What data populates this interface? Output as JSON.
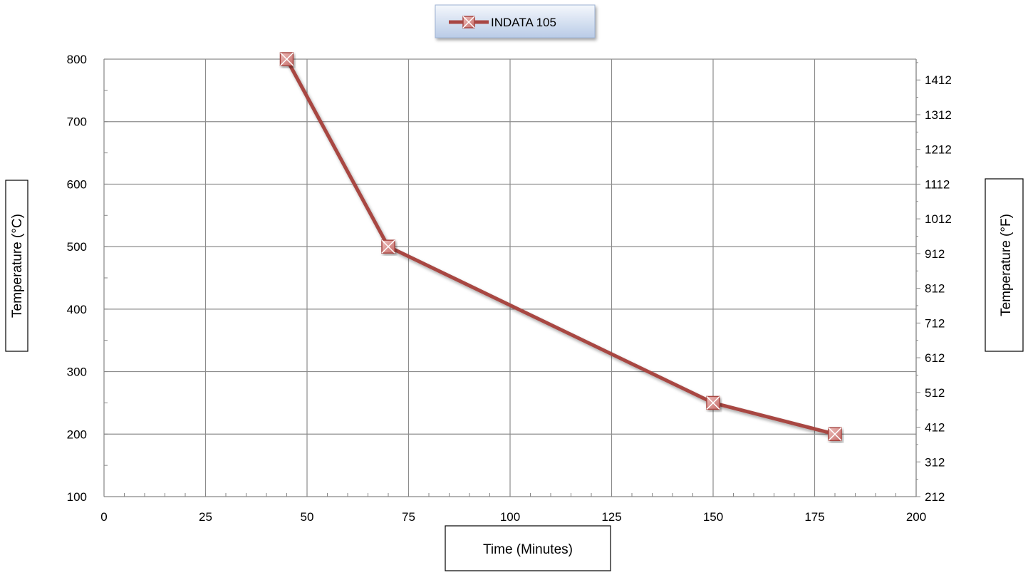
{
  "chart_data": {
    "type": "line",
    "title": "",
    "legend": {
      "placement": "top-center",
      "entries": [
        "INDATA 105"
      ]
    },
    "xlabel": "Time (Minutes)",
    "ylabel": "Temperature (°C)",
    "y2label": "Temperature (°F)",
    "xlim": [
      0,
      200
    ],
    "ylim": [
      100,
      800
    ],
    "y2lim": [
      212,
      1472
    ],
    "x_ticks": [
      0,
      25,
      50,
      75,
      100,
      125,
      150,
      175,
      200
    ],
    "y_ticks": [
      100,
      200,
      300,
      400,
      500,
      600,
      700,
      800
    ],
    "y2_ticks": [
      212,
      312,
      412,
      512,
      612,
      712,
      812,
      912,
      1012,
      1112,
      1212,
      1312,
      1412
    ],
    "grid": true,
    "series": [
      {
        "name": "INDATA 105",
        "color": "#A84643",
        "marker": "square-x",
        "x": [
          45,
          70,
          150,
          180
        ],
        "y": [
          800,
          500,
          250,
          200
        ]
      }
    ]
  }
}
